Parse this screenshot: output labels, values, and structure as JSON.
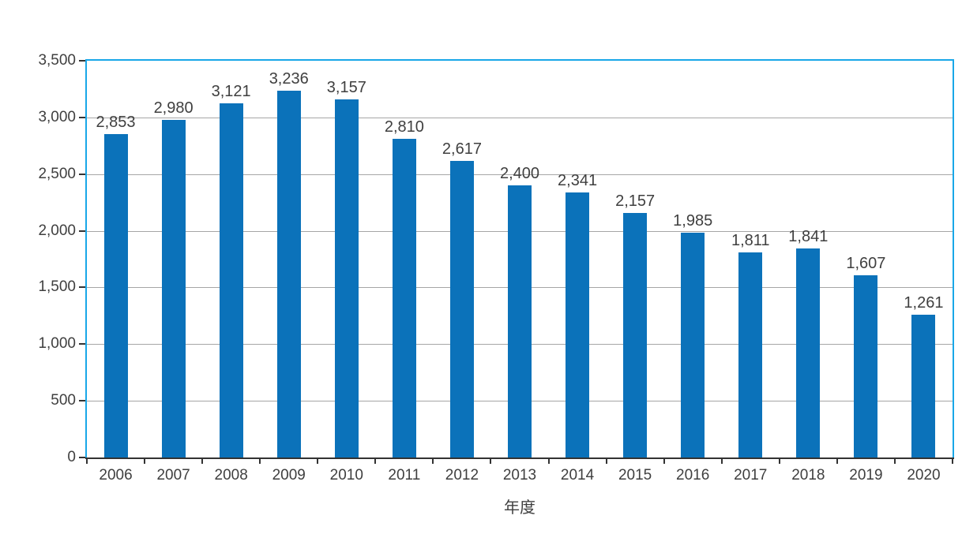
{
  "chart_data": {
    "type": "bar",
    "title": "",
    "xlabel": "年度",
    "ylabel": "",
    "categories": [
      "2006",
      "2007",
      "2008",
      "2009",
      "2010",
      "2011",
      "2012",
      "2013",
      "2014",
      "2015",
      "2016",
      "2017",
      "2018",
      "2019",
      "2020"
    ],
    "values": [
      2853,
      2980,
      3121,
      3236,
      3157,
      2810,
      2617,
      2400,
      2341,
      2157,
      1985,
      1811,
      1841,
      1607,
      1261
    ],
    "data_labels": [
      "2,853",
      "2,980",
      "3,121",
      "3,236",
      "3,157",
      "2,810",
      "2,617",
      "2,400",
      "2,341",
      "2,157",
      "1,985",
      "1,811",
      "1,841",
      "1,607",
      "1,261"
    ],
    "ylim": [
      0,
      3500
    ],
    "ytick_interval": 500,
    "ytick_labels": [
      "0",
      "500",
      "1,000",
      "1,500",
      "2,000",
      "2,500",
      "3,000",
      "3,500"
    ],
    "grid": "horizontal",
    "legend": "none",
    "colors": {
      "bar": "#0b72ba",
      "plot_border": "#19a7e8",
      "gridline": "#a6a6a6",
      "axis_line": "#333333",
      "text": "#3f3f3f"
    }
  }
}
